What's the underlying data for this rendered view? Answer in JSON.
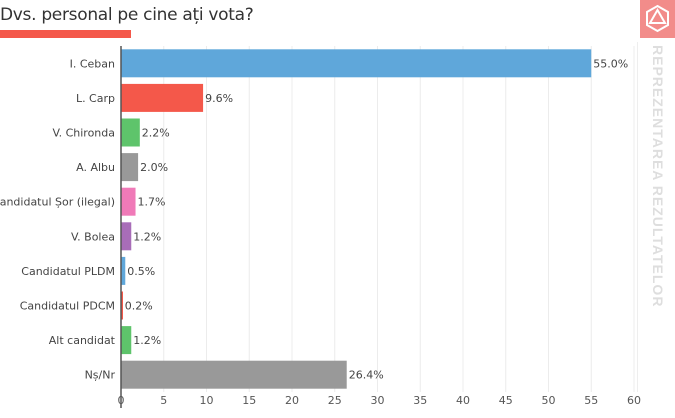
{
  "header": {
    "title": "Dvs. personal pe cine ați vota?"
  },
  "sidebar": {
    "label": "REPREZENTAREA REZULTATELOR",
    "logo_icon": "icosahedron-icon"
  },
  "colors": {
    "accent": "#f4584a",
    "logo_bg": "#f28c8a"
  },
  "chart_data": {
    "type": "bar",
    "orientation": "horizontal",
    "title": "Dvs. personal pe cine ați vota?",
    "xlabel": "",
    "ylabel": "",
    "xlim": [
      0,
      60
    ],
    "xticks": [
      0,
      5,
      10,
      15,
      20,
      25,
      30,
      35,
      40,
      45,
      50,
      55,
      60
    ],
    "grid": true,
    "categories": [
      "I. Ceban",
      "L. Carp",
      "V. Chironda",
      "A. Albu",
      "Candidatul Șor (ilegal)",
      "V. Bolea",
      "Candidatul PLDM",
      "Candidatul PDCM",
      "Alt candidat",
      "Nș/Nr"
    ],
    "values": [
      55.0,
      9.6,
      2.2,
      2.0,
      1.7,
      1.2,
      0.5,
      0.2,
      1.2,
      26.4
    ],
    "labels": [
      "55.0%",
      "9.6%",
      "2.2%",
      "2.0%",
      "1.7%",
      "1.2%",
      "0.5%",
      "0.2%",
      "1.2%",
      "26.4%"
    ],
    "colors": [
      "#5fa7da",
      "#f4584a",
      "#5ec46b",
      "#999999",
      "#f07ab8",
      "#a86db8",
      "#5fa7da",
      "#f4584a",
      "#5ec46b",
      "#999999"
    ]
  }
}
